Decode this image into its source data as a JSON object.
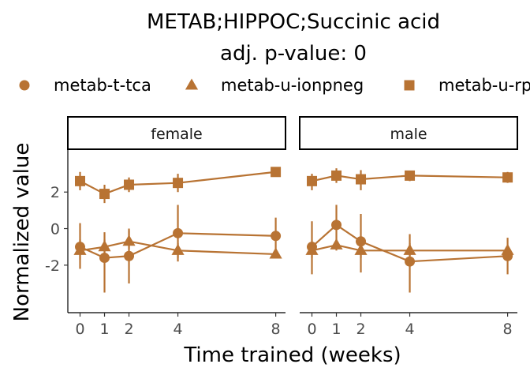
{
  "chart_data": {
    "type": "line",
    "title": "METAB;HIPPOC;Succinic acid",
    "subtitle": "adj. p-value: 0",
    "xlabel": "Time trained (weeks)",
    "ylabel": "Normalized value",
    "x_ticks": [
      0,
      1,
      2,
      4,
      8
    ],
    "x_tick_labels": [
      "0",
      "1",
      "2",
      "4",
      "8"
    ],
    "y_ticks": [
      -2,
      0,
      2
    ],
    "y_tick_labels": [
      "-2",
      "0",
      "2"
    ],
    "ylim": [
      -4.6,
      4.3
    ],
    "grid": false,
    "legend_position": "top",
    "color": "#B87333",
    "legend": [
      {
        "label": "metab-t-tca",
        "shape": "circle"
      },
      {
        "label": "metab-u-ionpneg",
        "shape": "triangle"
      },
      {
        "label": "metab-u-rppos",
        "shape": "square"
      }
    ],
    "panels": [
      {
        "label": "female",
        "series": [
          {
            "name": "metab-t-tca",
            "shape": "circle",
            "x": [
              0,
              1,
              2,
              4,
              8
            ],
            "y": [
              -1.0,
              -1.6,
              -1.5,
              -0.25,
              -0.4
            ],
            "lo": [
              -2.2,
              -3.5,
              -3.0,
              -1.6,
              -1.5
            ],
            "hi": [
              0.3,
              -0.2,
              0.0,
              1.3,
              0.6
            ]
          },
          {
            "name": "metab-u-ionpneg",
            "shape": "triangle",
            "x": [
              0,
              1,
              2,
              4,
              8
            ],
            "y": [
              -1.2,
              -1.0,
              -0.7,
              -1.2,
              -1.4
            ],
            "lo": [
              -1.7,
              -1.4,
              -1.1,
              -1.8,
              -1.6
            ],
            "hi": [
              -0.6,
              -0.6,
              -0.1,
              -0.8,
              -1.2
            ]
          },
          {
            "name": "metab-u-rppos",
            "shape": "square",
            "x": [
              0,
              1,
              2,
              4,
              8
            ],
            "y": [
              2.6,
              1.9,
              2.4,
              2.5,
              3.1
            ],
            "lo": [
              2.1,
              1.4,
              2.0,
              2.0,
              2.9
            ],
            "hi": [
              3.1,
              2.4,
              2.8,
              3.0,
              3.3
            ]
          }
        ]
      },
      {
        "label": "male",
        "series": [
          {
            "name": "metab-t-tca",
            "shape": "circle",
            "x": [
              0,
              1,
              2,
              4,
              8
            ],
            "y": [
              -1.0,
              0.2,
              -0.7,
              -1.8,
              -1.5
            ],
            "lo": [
              -2.5,
              -0.9,
              -2.4,
              -3.5,
              -2.5
            ],
            "hi": [
              0.4,
              1.3,
              0.8,
              -0.3,
              -0.5
            ]
          },
          {
            "name": "metab-u-ionpneg",
            "shape": "triangle",
            "x": [
              0,
              1,
              2,
              4,
              8
            ],
            "y": [
              -1.2,
              -0.9,
              -1.2,
              -1.2,
              -1.2
            ],
            "lo": [
              -1.6,
              -1.2,
              -1.6,
              -1.5,
              -1.5
            ],
            "hi": [
              -0.8,
              -0.6,
              -0.8,
              -0.8,
              -0.9
            ]
          },
          {
            "name": "metab-u-rppos",
            "shape": "square",
            "x": [
              0,
              1,
              2,
              4,
              8
            ],
            "y": [
              2.6,
              2.9,
              2.7,
              2.9,
              2.8
            ],
            "lo": [
              2.1,
              2.5,
              2.1,
              2.6,
              2.5
            ],
            "hi": [
              3.0,
              3.3,
              3.2,
              3.1,
              3.1
            ]
          }
        ]
      }
    ]
  }
}
